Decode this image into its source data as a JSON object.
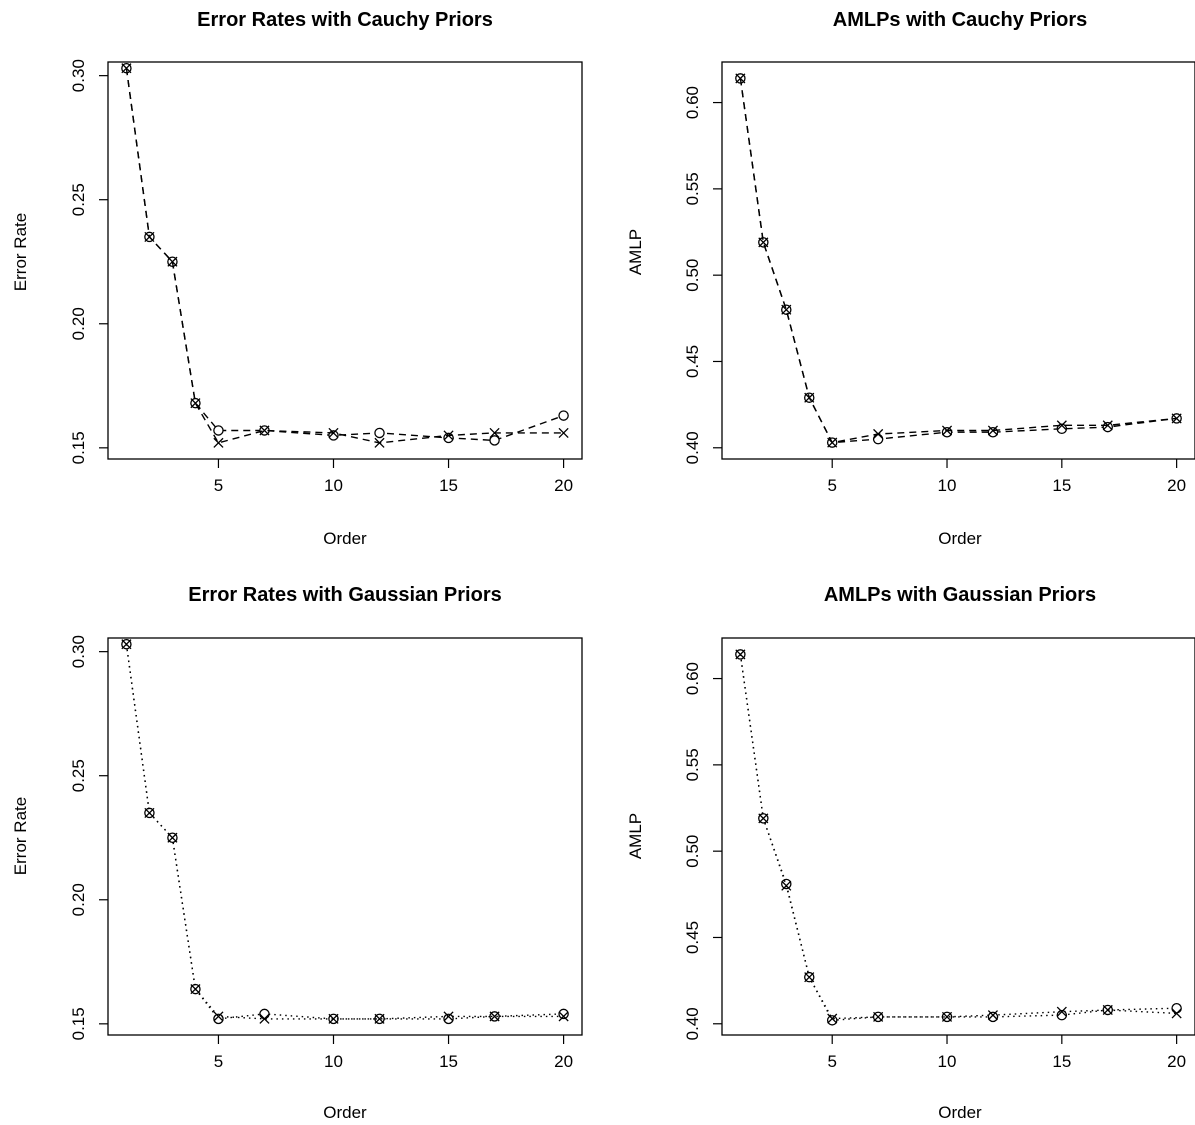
{
  "chart_data": [
    {
      "type": "line",
      "title": "Error Rates with Cauchy Priors",
      "xlabel": "Order",
      "ylabel": "Error Rate",
      "xlim": [
        0.2,
        20.8
      ],
      "ylim": [
        0.1455,
        0.3055
      ],
      "xticks": [
        5,
        10,
        15,
        20
      ],
      "yticks": [
        0.15,
        0.2,
        0.25,
        0.3
      ],
      "line_style": "dashed",
      "grid": false,
      "x": [
        1,
        2,
        3,
        4,
        5,
        7,
        10,
        12,
        15,
        17,
        20
      ],
      "series": [
        {
          "marker": "circle",
          "values": [
            0.303,
            0.235,
            0.225,
            0.168,
            0.157,
            0.157,
            0.155,
            0.156,
            0.154,
            0.153,
            0.163
          ]
        },
        {
          "marker": "cross",
          "values": [
            0.303,
            0.235,
            0.225,
            0.168,
            0.152,
            0.157,
            0.156,
            0.152,
            0.155,
            0.156,
            0.156
          ]
        }
      ]
    },
    {
      "type": "line",
      "title": "AMLPs with Cauchy Priors",
      "xlabel": "Order",
      "ylabel": "AMLP",
      "xlim": [
        0.2,
        20.8
      ],
      "ylim": [
        0.3935,
        0.6235
      ],
      "xticks": [
        5,
        10,
        15,
        20
      ],
      "yticks": [
        0.4,
        0.45,
        0.5,
        0.55,
        0.6
      ],
      "line_style": "dashed",
      "grid": false,
      "x": [
        1,
        2,
        3,
        4,
        5,
        7,
        10,
        12,
        15,
        17,
        20
      ],
      "series": [
        {
          "marker": "circle",
          "values": [
            0.614,
            0.519,
            0.48,
            0.429,
            0.403,
            0.405,
            0.409,
            0.409,
            0.411,
            0.412,
            0.417
          ]
        },
        {
          "marker": "cross",
          "values": [
            0.614,
            0.519,
            0.48,
            0.429,
            0.403,
            0.408,
            0.41,
            0.41,
            0.413,
            0.413,
            0.417
          ]
        }
      ]
    },
    {
      "type": "line",
      "title": "Error Rates with Gaussian Priors",
      "xlabel": "Order",
      "ylabel": "Error Rate",
      "xlim": [
        0.2,
        20.8
      ],
      "ylim": [
        0.1455,
        0.3055
      ],
      "xticks": [
        5,
        10,
        15,
        20
      ],
      "yticks": [
        0.15,
        0.2,
        0.25,
        0.3
      ],
      "line_style": "dotted",
      "grid": false,
      "x": [
        1,
        2,
        3,
        4,
        5,
        7,
        10,
        12,
        15,
        17,
        20
      ],
      "series": [
        {
          "marker": "circle",
          "values": [
            0.303,
            0.235,
            0.225,
            0.164,
            0.152,
            0.154,
            0.152,
            0.152,
            0.152,
            0.153,
            0.154
          ]
        },
        {
          "marker": "cross",
          "values": [
            0.303,
            0.235,
            0.225,
            0.164,
            0.153,
            0.152,
            0.152,
            0.152,
            0.153,
            0.153,
            0.153
          ]
        }
      ]
    },
    {
      "type": "line",
      "title": "AMLPs with Gaussian Priors",
      "xlabel": "Order",
      "ylabel": "AMLP",
      "xlim": [
        0.2,
        20.8
      ],
      "ylim": [
        0.3935,
        0.6235
      ],
      "xticks": [
        5,
        10,
        15,
        20
      ],
      "yticks": [
        0.4,
        0.45,
        0.5,
        0.55,
        0.6
      ],
      "line_style": "dotted",
      "grid": false,
      "x": [
        1,
        2,
        3,
        4,
        5,
        7,
        10,
        12,
        15,
        17,
        20
      ],
      "series": [
        {
          "marker": "circle",
          "values": [
            0.614,
            0.519,
            0.481,
            0.427,
            0.402,
            0.404,
            0.404,
            0.404,
            0.405,
            0.408,
            0.409
          ]
        },
        {
          "marker": "cross",
          "values": [
            0.614,
            0.519,
            0.48,
            0.427,
            0.403,
            0.404,
            0.404,
            0.405,
            0.407,
            0.408,
            0.406
          ]
        }
      ]
    }
  ]
}
